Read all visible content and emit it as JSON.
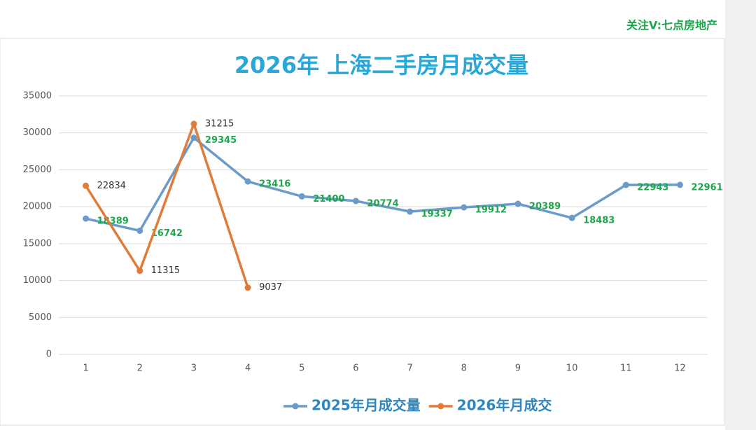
{
  "watermark": "关注V:七点房地产",
  "chart_data": {
    "type": "line",
    "title": "2026年 上海二手房月成交量",
    "categories": [
      "1",
      "2",
      "3",
      "4",
      "5",
      "6",
      "7",
      "8",
      "9",
      "10",
      "11",
      "12"
    ],
    "series": [
      {
        "name": "2025年月成交量",
        "color": "#6b9bc9",
        "label_color": "#1ea64c",
        "values": [
          18389,
          16742,
          29345,
          23416,
          21400,
          20774,
          19337,
          19912,
          20389,
          18483,
          22943,
          22961
        ]
      },
      {
        "name": "2026年月成交",
        "color": "#e07b39",
        "label_color": "#333333",
        "values": [
          22834,
          11315,
          31215,
          9037,
          null,
          null,
          null,
          null,
          null,
          null,
          null,
          null
        ]
      }
    ],
    "ylim": [
      0,
      35000
    ],
    "yticks": [
      0,
      5000,
      10000,
      15000,
      20000,
      25000,
      30000,
      35000
    ],
    "grid": true,
    "legend": "bottom"
  }
}
